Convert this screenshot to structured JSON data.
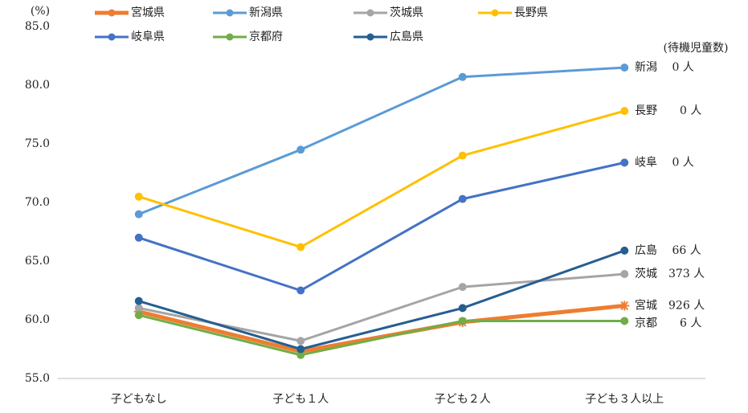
{
  "chart_data": {
    "type": "line",
    "y_unit": "(%)",
    "annotation": "(待機児童数)",
    "categories": [
      "子どもなし",
      "子ども１人",
      "子ども２人",
      "子ども３人以上"
    ],
    "ylim": [
      55,
      85
    ],
    "yticks": [
      {
        "value": 55,
        "label": "55.0"
      },
      {
        "value": 60,
        "label": "60.0"
      },
      {
        "value": 65,
        "label": "65.0"
      },
      {
        "value": 70,
        "label": "70.0"
      },
      {
        "value": 75,
        "label": "75.0"
      },
      {
        "value": 80,
        "label": "80.0"
      },
      {
        "value": 85,
        "label": "85.0"
      }
    ],
    "grid": false,
    "legend": "top",
    "series": [
      {
        "name": "宮城県",
        "color": "#ED7D31",
        "marker": "star",
        "values": [
          60.7,
          57.3,
          59.8,
          61.2
        ],
        "end_label": "宮城　926 人"
      },
      {
        "name": "新潟県",
        "color": "#5B9BD5",
        "marker": "circle",
        "values": [
          69.0,
          74.5,
          80.7,
          81.5
        ],
        "end_label": "新潟　 0 人"
      },
      {
        "name": "茨城県",
        "color": "#A5A5A5",
        "marker": "circle",
        "values": [
          61.0,
          58.2,
          62.8,
          63.9
        ],
        "end_label": "茨城　373 人"
      },
      {
        "name": "長野県",
        "color": "#FFC000",
        "marker": "circle",
        "values": [
          70.5,
          66.2,
          74.0,
          77.8
        ],
        "end_label": "長野　　0 人"
      },
      {
        "name": "岐阜県",
        "color": "#4472C4",
        "marker": "circle",
        "values": [
          67.0,
          62.5,
          70.3,
          73.4
        ],
        "end_label": "岐阜　 0 人"
      },
      {
        "name": "京都府",
        "color": "#70AD47",
        "marker": "circle",
        "values": [
          60.4,
          57.0,
          59.9,
          59.9
        ],
        "end_label": "京都　　6 人"
      },
      {
        "name": "広島県",
        "color": "#255E91",
        "marker": "circle",
        "values": [
          61.6,
          57.5,
          61.0,
          65.9
        ],
        "end_label": "広島　 66 人"
      }
    ]
  }
}
